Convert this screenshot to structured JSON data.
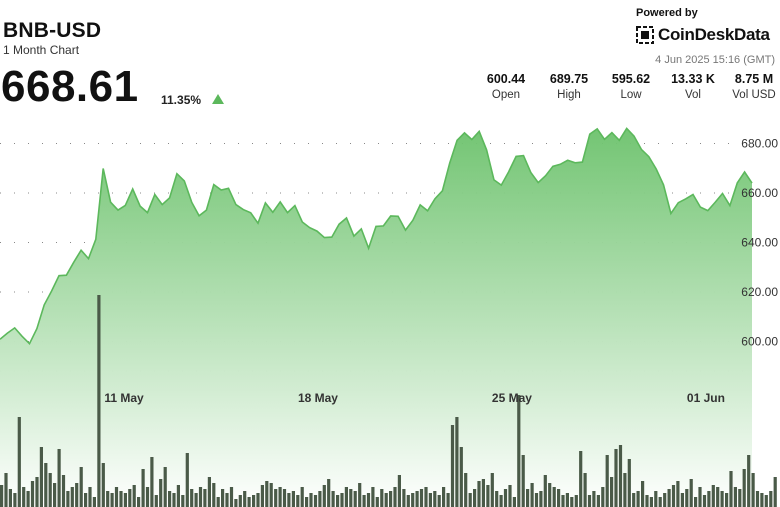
{
  "header": {
    "pair": "BNB-USD",
    "period": "1 Month Chart",
    "price": "668.61",
    "change": "11.35%",
    "powered_by": "Powered by",
    "brand": "CoinDeskData",
    "timestamp": "4 Jun 2025 15:16 (GMT)",
    "accent": "#5cb85c"
  },
  "stats": [
    {
      "value": "600.44",
      "label": "Open"
    },
    {
      "value": "689.75",
      "label": "High"
    },
    {
      "value": "595.62",
      "label": "Low"
    },
    {
      "value": "13.33 K",
      "label": "Vol"
    },
    {
      "value": "8.75 M",
      "label": "Vol USD"
    }
  ],
  "chart_data": {
    "type": "area",
    "title": "BNB-USD",
    "ylim": [
      595,
      690
    ],
    "yticks": [
      600,
      620,
      640,
      660,
      680
    ],
    "ytick_labels": [
      "600.00",
      "620.00",
      "640.00",
      "660.00",
      "680.00"
    ],
    "xticks": [
      "11 May",
      "18 May",
      "25 May",
      "01 Jun"
    ],
    "xtick_dates": [
      "2025-05-11",
      "2025-05-18",
      "2025-05-25",
      "2025-06-01"
    ],
    "x_range": [
      "2025-05-06",
      "2025-06-04"
    ],
    "grid": true,
    "colors": {
      "line": "#5cb85c",
      "fill_top": "#6cc26c",
      "fill_bottom": "#ffffff",
      "volume": "#4a5a48"
    },
    "series": [
      {
        "values": [
          600.9,
          603.4,
          605.5,
          602.1,
          599.1,
          605.2,
          614.8,
          620.4,
          626.6,
          626.8,
          632.0,
          636.9,
          633.5,
          641.3,
          669.9,
          656.3,
          653.1,
          655.0,
          661.6,
          654.7,
          652.1,
          659.4,
          655.3,
          658.0,
          667.8,
          664.9,
          656.3,
          650.8,
          653.1,
          663.4,
          661.2,
          661.9,
          655.3,
          653.3,
          652.0,
          647.8,
          656.0,
          652.2,
          656.4,
          652.1,
          654.9,
          648.3,
          646.0,
          644.6,
          642.0,
          642.2,
          647.4,
          649.9,
          642.6,
          645.5,
          637.7,
          646.5,
          646.7,
          650.7,
          650.6,
          645.0,
          649.0,
          655.2,
          652.8,
          657.7,
          660.9,
          672.1,
          681.3,
          684.3,
          681.6,
          684.9,
          677.4,
          665.3,
          663.2,
          668.6,
          674.8,
          675.1,
          668.3,
          664.2,
          667.0,
          670.8,
          671.6,
          673.2,
          672.2,
          672.5,
          683.8,
          685.9,
          681.7,
          684.4,
          681.3,
          686.1,
          683.0,
          677.6,
          674.7,
          669.7,
          663.3,
          651.7,
          656.1,
          657.6,
          659.4,
          654.3,
          652.9,
          656.2,
          659.8,
          654.9,
          664.1,
          668.5,
          664.0
        ]
      }
    ],
    "volume": [
      22,
      34,
      18,
      14,
      90,
      20,
      16,
      26,
      30,
      60,
      44,
      34,
      24,
      58,
      32,
      16,
      20,
      24,
      40,
      14,
      20,
      10,
      212,
      44,
      16,
      14,
      20,
      16,
      14,
      18,
      22,
      10,
      38,
      20,
      50,
      12,
      28,
      40,
      16,
      14,
      22,
      12,
      54,
      18,
      14,
      20,
      18,
      30,
      24,
      10,
      18,
      14,
      20,
      8,
      12,
      16,
      10,
      12,
      14,
      22,
      26,
      24,
      18,
      20,
      18,
      14,
      16,
      12,
      20,
      10,
      14,
      12,
      16,
      22,
      28,
      16,
      12,
      14,
      20,
      18,
      16,
      24,
      12,
      14,
      20,
      10,
      18,
      14,
      16,
      20,
      32,
      18,
      12,
      14,
      16,
      18,
      20,
      14,
      16,
      12,
      20,
      14,
      82,
      90,
      60,
      34,
      14,
      18,
      26,
      28,
      22,
      34,
      16,
      12,
      18,
      22,
      10,
      112,
      52,
      18,
      24,
      14,
      16,
      32,
      24,
      20,
      18,
      12,
      14,
      10,
      12,
      56,
      34,
      12,
      16,
      12,
      20,
      52,
      30,
      58,
      62,
      34,
      48,
      14,
      16,
      26,
      12,
      10,
      16,
      10,
      14,
      18,
      22,
      26,
      14,
      18,
      28,
      10,
      20,
      12,
      16,
      22,
      20,
      16,
      14,
      36,
      20,
      18,
      38,
      52,
      34,
      16,
      14,
      12,
      16,
      30
    ]
  }
}
